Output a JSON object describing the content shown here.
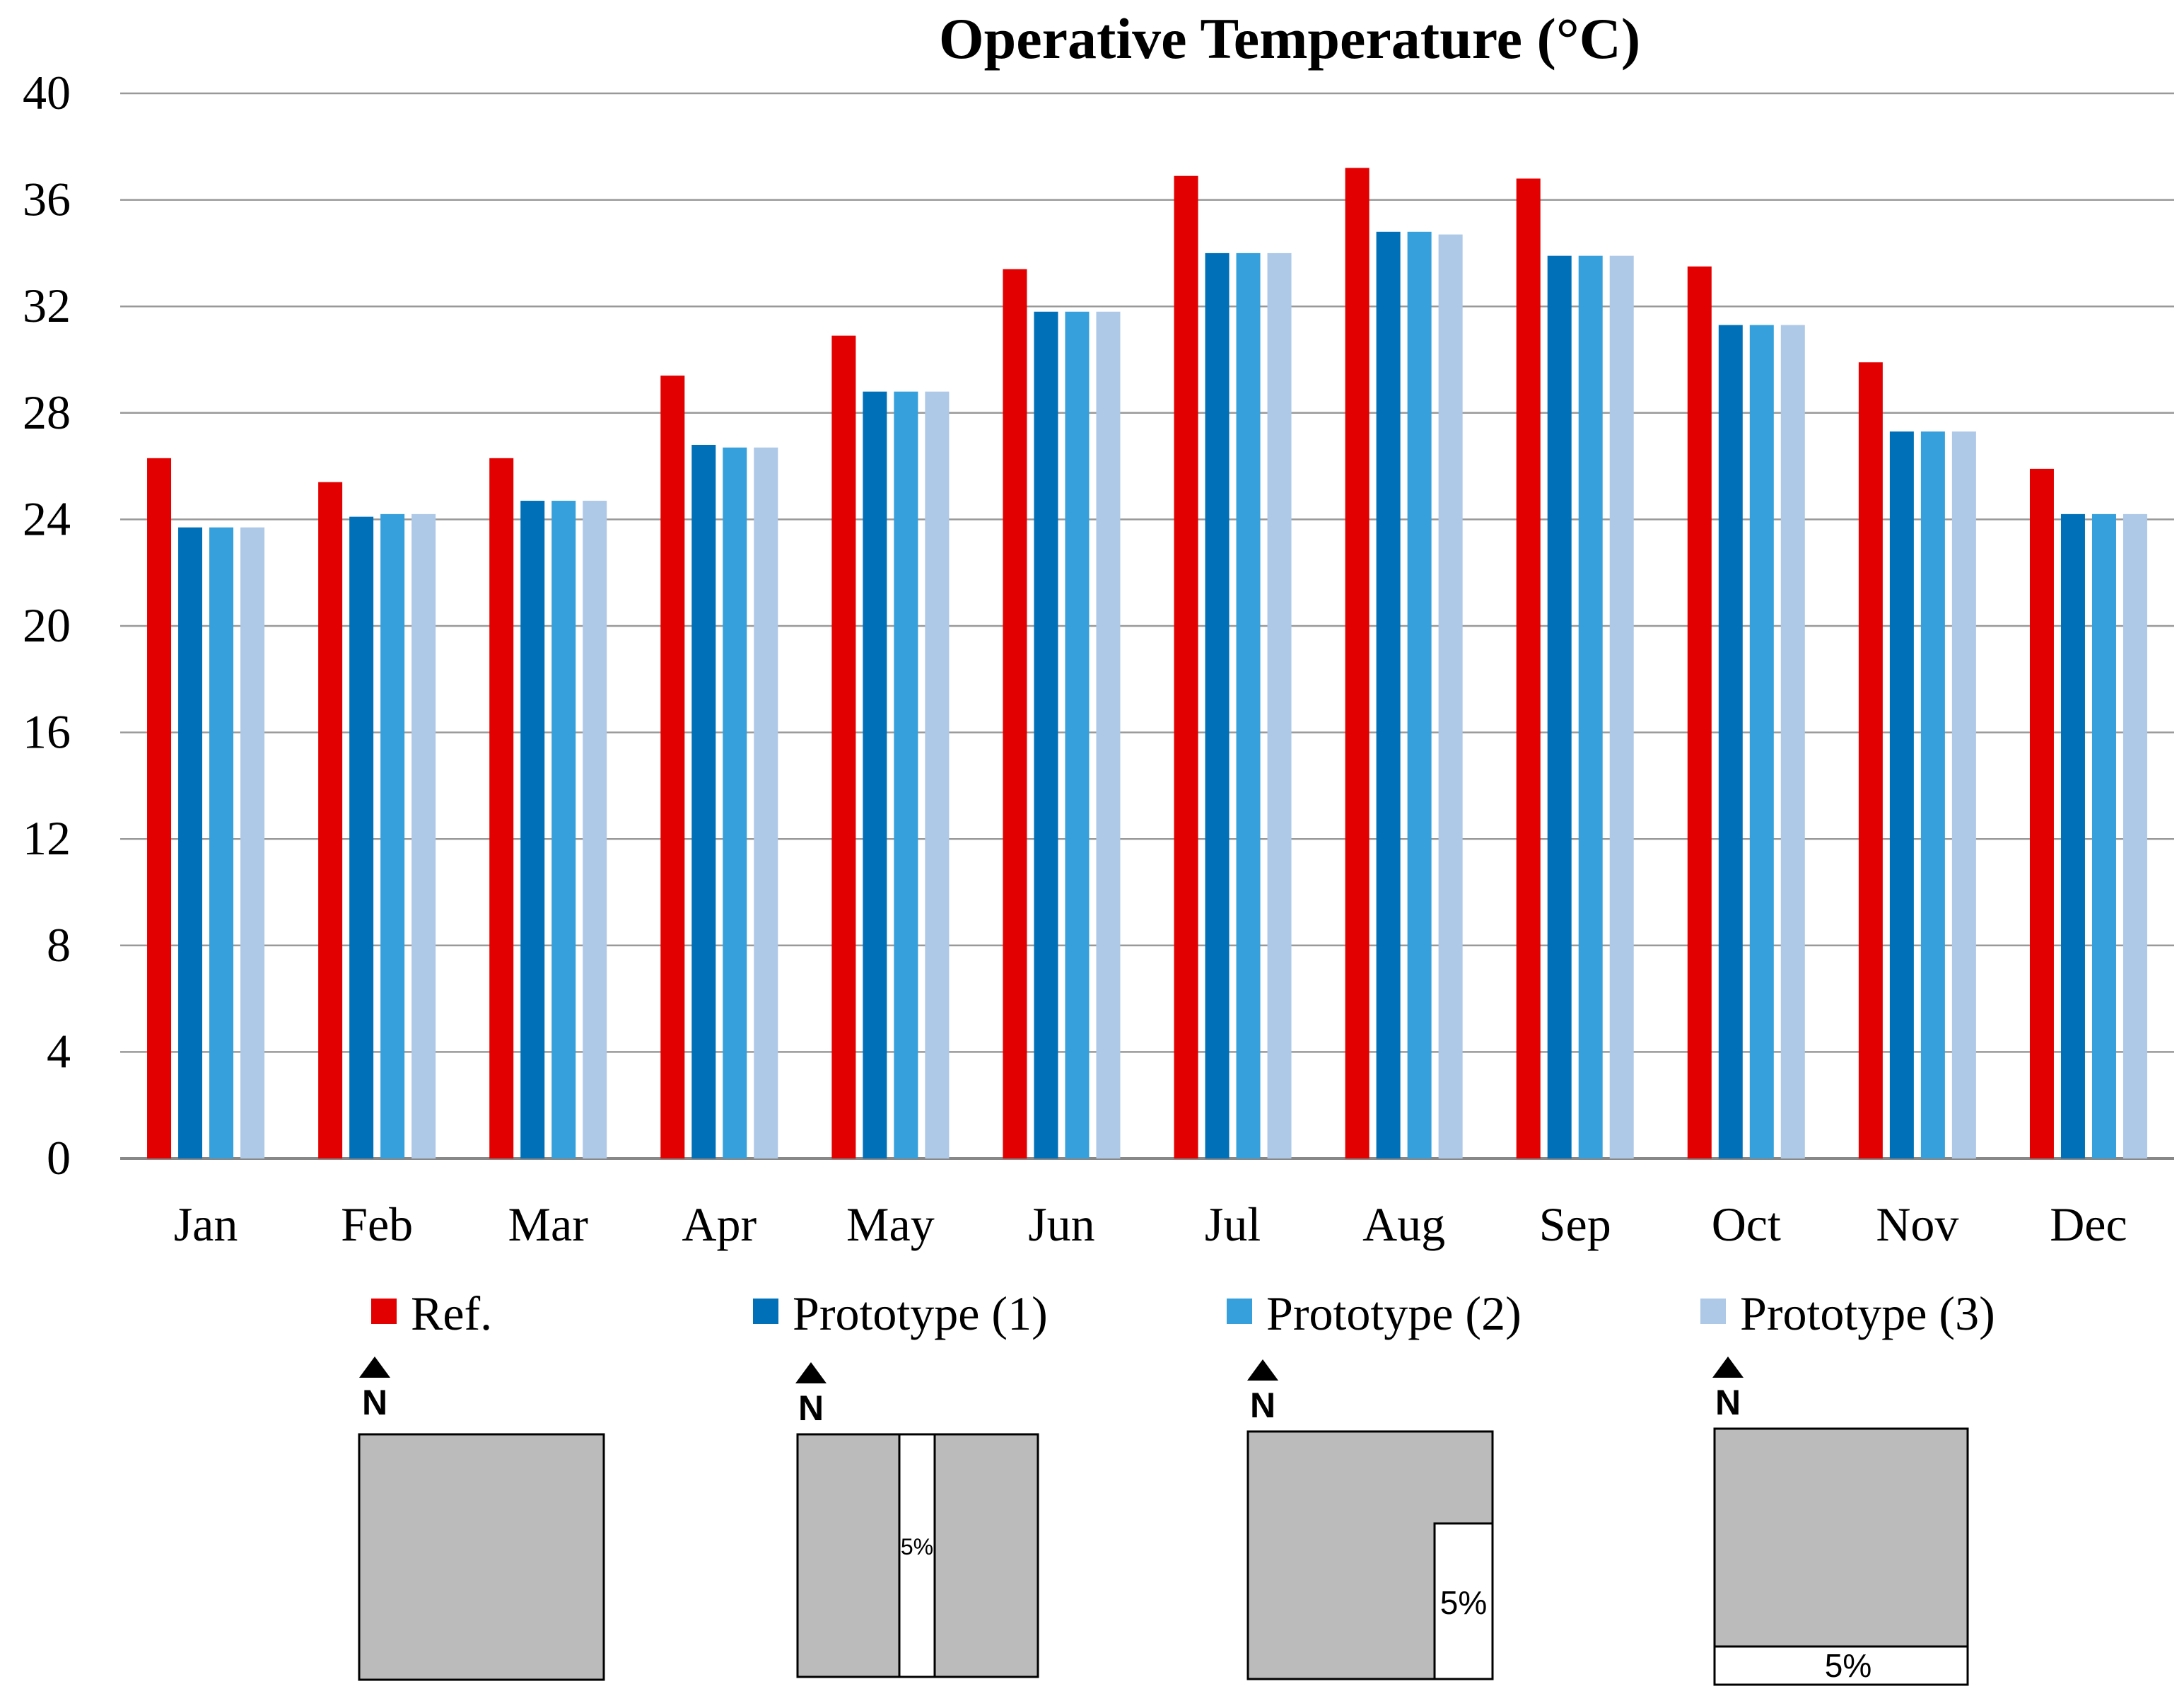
{
  "chart_data": {
    "type": "bar",
    "title": "Operative Temperature (°C)",
    "xlabel": "",
    "ylabel": "",
    "ylim": [
      0,
      40
    ],
    "yticks": [
      0,
      4,
      8,
      12,
      16,
      20,
      24,
      28,
      32,
      36,
      40
    ],
    "grid": true,
    "legend_position": "bottom",
    "categories": [
      "Jan",
      "Feb",
      "Mar",
      "Apr",
      "May",
      "Jun",
      "Jul",
      "Aug",
      "Sep",
      "Oct",
      "Nov",
      "Dec"
    ],
    "series": [
      {
        "name": "Ref.",
        "color": "#e20000",
        "values": [
          26.3,
          25.4,
          26.3,
          29.4,
          30.9,
          33.4,
          36.9,
          37.2,
          36.8,
          33.5,
          29.9,
          25.9
        ]
      },
      {
        "name": "Prototype (1)",
        "color": "#0070b8",
        "values": [
          23.7,
          24.1,
          24.7,
          26.8,
          28.8,
          31.8,
          34.0,
          34.8,
          33.9,
          31.3,
          27.3,
          24.2
        ]
      },
      {
        "name": "Prototype (2)",
        "color": "#35a0dc",
        "values": [
          23.7,
          24.2,
          24.7,
          26.7,
          28.8,
          31.8,
          34.0,
          34.8,
          33.9,
          31.3,
          27.3,
          24.2
        ]
      },
      {
        "name": "Prototype (3)",
        "color": "#aec8e8",
        "values": [
          23.7,
          24.2,
          24.7,
          26.7,
          28.8,
          31.8,
          34.0,
          34.7,
          33.9,
          31.3,
          27.3,
          24.2
        ]
      }
    ]
  },
  "diagrams": {
    "north_label": "N",
    "fill_color": "#bbbbbb",
    "items": [
      {
        "name": "Ref.",
        "cutout": "none",
        "label": ""
      },
      {
        "name": "Prototype (1)",
        "cutout": "vertical-strip-center",
        "label": "5%"
      },
      {
        "name": "Prototype (2)",
        "cutout": "corner-bottom-right",
        "label": "5%"
      },
      {
        "name": "Prototype (3)",
        "cutout": "horizontal-strip-bottom",
        "label": "5%"
      }
    ]
  }
}
